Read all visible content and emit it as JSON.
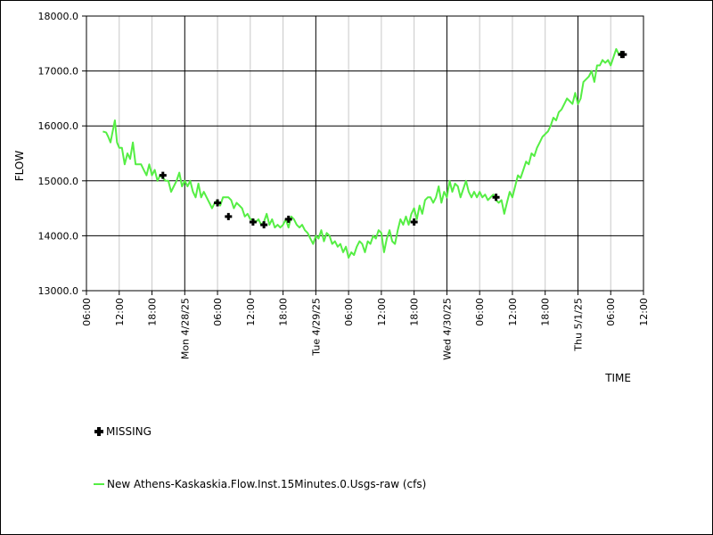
{
  "chart_data": {
    "type": "line",
    "xlabel": "TIME",
    "ylabel": "FLOW",
    "ylim": [
      13000,
      18000
    ],
    "y_ticks": [
      "13000.0",
      "14000.0",
      "15000.0",
      "16000.0",
      "17000.0",
      "18000.0"
    ],
    "x_range_hours": [
      6,
      108
    ],
    "x_ticks": [
      {
        "h": 6,
        "label": "06:00"
      },
      {
        "h": 12,
        "label": "12:00"
      },
      {
        "h": 18,
        "label": "18:00"
      },
      {
        "h": 24,
        "label": "Mon 4/28/25"
      },
      {
        "h": 30,
        "label": "06:00"
      },
      {
        "h": 36,
        "label": "12:00"
      },
      {
        "h": 42,
        "label": "18:00"
      },
      {
        "h": 48,
        "label": "Tue 4/29/25"
      },
      {
        "h": 54,
        "label": "06:00"
      },
      {
        "h": 60,
        "label": "12:00"
      },
      {
        "h": 66,
        "label": "18:00"
      },
      {
        "h": 72,
        "label": "Wed 4/30/25"
      },
      {
        "h": 78,
        "label": "06:00"
      },
      {
        "h": 84,
        "label": "12:00"
      },
      {
        "h": 90,
        "label": "18:00"
      },
      {
        "h": 96,
        "label": "Thu 5/1/25"
      },
      {
        "h": 102,
        "label": "06:00"
      },
      {
        "h": 108,
        "label": "12:00"
      }
    ],
    "series": [
      {
        "name": "New Athens-Kaskaskia.Flow.Inst.15Minutes.0.Usgs-raw (cfs)",
        "color": "#55ee44",
        "points": [
          [
            9,
            15900
          ],
          [
            9.6,
            15880
          ],
          [
            10,
            15800
          ],
          [
            10.4,
            15700
          ],
          [
            10.8,
            15900
          ],
          [
            11.2,
            16100
          ],
          [
            11.6,
            15700
          ],
          [
            12,
            15600
          ],
          [
            12.5,
            15600
          ],
          [
            13,
            15300
          ],
          [
            13.5,
            15500
          ],
          [
            14,
            15400
          ],
          [
            14.5,
            15700
          ],
          [
            15,
            15300
          ],
          [
            16,
            15300
          ],
          [
            16.5,
            15200
          ],
          [
            17,
            15100
          ],
          [
            17.5,
            15300
          ],
          [
            18,
            15100
          ],
          [
            18.5,
            15200
          ],
          [
            19,
            15000
          ],
          [
            19.5,
            15100
          ],
          [
            20,
            15050
          ],
          [
            20.5,
            15000
          ],
          [
            21,
            15000
          ],
          [
            21.5,
            14800
          ],
          [
            22,
            14900
          ],
          [
            22.5,
            15000
          ],
          [
            23,
            15150
          ],
          [
            23.5,
            14900
          ],
          [
            24,
            15000
          ],
          [
            24.5,
            14900
          ],
          [
            25,
            15000
          ],
          [
            25.5,
            14800
          ],
          [
            26,
            14700
          ],
          [
            26.5,
            14950
          ],
          [
            27,
            14700
          ],
          [
            27.5,
            14800
          ],
          [
            28,
            14700
          ],
          [
            28.5,
            14600
          ],
          [
            29,
            14500
          ],
          [
            29.5,
            14600
          ],
          [
            30,
            14650
          ],
          [
            30.5,
            14550
          ],
          [
            31,
            14700
          ],
          [
            32,
            14700
          ],
          [
            32.5,
            14650
          ],
          [
            33,
            14500
          ],
          [
            33.5,
            14600
          ],
          [
            34,
            14550
          ],
          [
            34.5,
            14500
          ],
          [
            35,
            14350
          ],
          [
            35.5,
            14400
          ],
          [
            36,
            14300
          ],
          [
            36.5,
            14300
          ],
          [
            37,
            14250
          ],
          [
            37.5,
            14300
          ],
          [
            38,
            14200
          ],
          [
            38.5,
            14250
          ],
          [
            39,
            14400
          ],
          [
            39.5,
            14200
          ],
          [
            40,
            14300
          ],
          [
            40.5,
            14150
          ],
          [
            41,
            14200
          ],
          [
            41.5,
            14150
          ],
          [
            42,
            14200
          ],
          [
            42.5,
            14300
          ],
          [
            43,
            14150
          ],
          [
            43.5,
            14350
          ],
          [
            44,
            14300
          ],
          [
            44.5,
            14200
          ],
          [
            45,
            14150
          ],
          [
            45.5,
            14200
          ],
          [
            46,
            14100
          ],
          [
            46.5,
            14050
          ],
          [
            47,
            13950
          ],
          [
            47.5,
            13850
          ],
          [
            48,
            14000
          ],
          [
            48.5,
            13950
          ],
          [
            49,
            14100
          ],
          [
            49.5,
            13900
          ],
          [
            50,
            14050
          ],
          [
            50.5,
            14000
          ],
          [
            51,
            13850
          ],
          [
            51.5,
            13900
          ],
          [
            52,
            13800
          ],
          [
            52.5,
            13850
          ],
          [
            53,
            13700
          ],
          [
            53.5,
            13800
          ],
          [
            54,
            13600
          ],
          [
            54.5,
            13700
          ],
          [
            55,
            13650
          ],
          [
            55.5,
            13800
          ],
          [
            56,
            13900
          ],
          [
            56.5,
            13850
          ],
          [
            57,
            13700
          ],
          [
            57.5,
            13900
          ],
          [
            58,
            13850
          ],
          [
            58.5,
            14000
          ],
          [
            59,
            13950
          ],
          [
            59.5,
            14100
          ],
          [
            60,
            14050
          ],
          [
            60.5,
            13700
          ],
          [
            61,
            13950
          ],
          [
            61.5,
            14100
          ],
          [
            62,
            13900
          ],
          [
            62.5,
            13850
          ],
          [
            63,
            14100
          ],
          [
            63.5,
            14300
          ],
          [
            64,
            14200
          ],
          [
            64.5,
            14350
          ],
          [
            65,
            14200
          ],
          [
            65.5,
            14400
          ],
          [
            66,
            14500
          ],
          [
            66.5,
            14300
          ],
          [
            67,
            14550
          ],
          [
            67.5,
            14400
          ],
          [
            68,
            14650
          ],
          [
            68.5,
            14700
          ],
          [
            69,
            14700
          ],
          [
            69.5,
            14600
          ],
          [
            70,
            14700
          ],
          [
            70.5,
            14900
          ],
          [
            71,
            14600
          ],
          [
            71.5,
            14800
          ],
          [
            72,
            14700
          ],
          [
            72.5,
            15000
          ],
          [
            73,
            14800
          ],
          [
            73.5,
            14950
          ],
          [
            74,
            14900
          ],
          [
            74.5,
            14700
          ],
          [
            75,
            14850
          ],
          [
            75.5,
            15000
          ],
          [
            76,
            14800
          ],
          [
            76.5,
            14700
          ],
          [
            77,
            14800
          ],
          [
            77.5,
            14700
          ],
          [
            78,
            14800
          ],
          [
            78.5,
            14700
          ],
          [
            79,
            14750
          ],
          [
            79.5,
            14650
          ],
          [
            80,
            14700
          ],
          [
            80.5,
            14750
          ],
          [
            81,
            14650
          ],
          [
            81.5,
            14600
          ],
          [
            82,
            14650
          ],
          [
            82.5,
            14400
          ],
          [
            83,
            14600
          ],
          [
            83.5,
            14800
          ],
          [
            84,
            14700
          ],
          [
            84.5,
            14900
          ],
          [
            85,
            15100
          ],
          [
            85.5,
            15050
          ],
          [
            86,
            15200
          ],
          [
            86.5,
            15350
          ],
          [
            87,
            15300
          ],
          [
            87.5,
            15500
          ],
          [
            88,
            15450
          ],
          [
            88.5,
            15600
          ],
          [
            89,
            15700
          ],
          [
            89.5,
            15800
          ],
          [
            90,
            15850
          ],
          [
            90.5,
            15900
          ],
          [
            91,
            16000
          ],
          [
            91.5,
            16150
          ],
          [
            92,
            16100
          ],
          [
            92.5,
            16250
          ],
          [
            93,
            16300
          ],
          [
            93.5,
            16400
          ],
          [
            94,
            16500
          ],
          [
            94.5,
            16450
          ],
          [
            95,
            16400
          ],
          [
            95.5,
            16600
          ],
          [
            96,
            16400
          ],
          [
            96.5,
            16500
          ],
          [
            97,
            16800
          ],
          [
            97.5,
            16850
          ],
          [
            98,
            16900
          ],
          [
            98.5,
            17000
          ],
          [
            99,
            16800
          ],
          [
            99.5,
            17100
          ],
          [
            100,
            17100
          ],
          [
            100.5,
            17200
          ],
          [
            101,
            17150
          ],
          [
            101.5,
            17200
          ],
          [
            102,
            17100
          ],
          [
            102.5,
            17250
          ],
          [
            103,
            17400
          ],
          [
            103.5,
            17300
          ],
          [
            104,
            17350
          ]
        ]
      }
    ],
    "missing_series": {
      "name": "MISSING",
      "points": [
        [
          20,
          15100
        ],
        [
          30,
          14600
        ],
        [
          32,
          14350
        ],
        [
          36.5,
          14250
        ],
        [
          38.5,
          14200
        ],
        [
          43,
          14300
        ],
        [
          66,
          14250
        ],
        [
          81,
          14700
        ],
        [
          104,
          17300
        ],
        [
          104.3,
          17300
        ]
      ]
    },
    "legend_placement": "bottom-left",
    "grid": true
  }
}
